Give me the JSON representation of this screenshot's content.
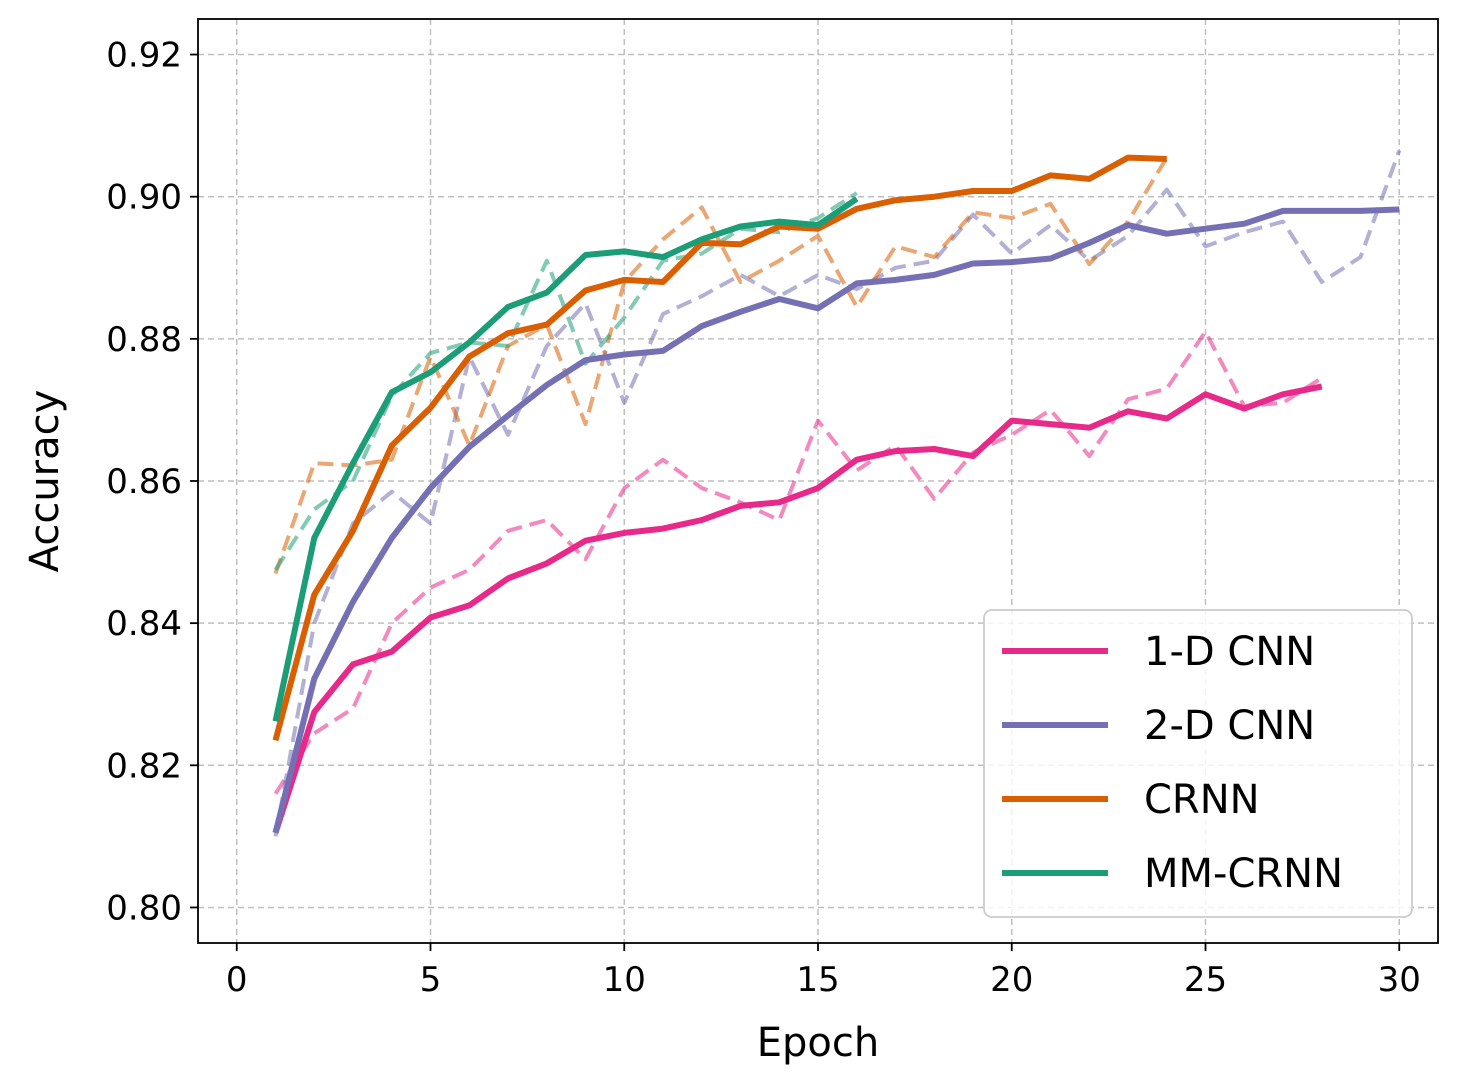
{
  "chart_data": {
    "type": "line",
    "xlabel": "Epoch",
    "ylabel": "Accuracy",
    "xlim": [
      -1,
      31
    ],
    "ylim": [
      0.795,
      0.925
    ],
    "xticks": [
      0,
      5,
      10,
      15,
      20,
      25,
      30
    ],
    "yticks": [
      0.8,
      0.82,
      0.84,
      0.86,
      0.88,
      0.9,
      0.92
    ],
    "xtick_labels": [
      "0",
      "5",
      "10",
      "15",
      "20",
      "25",
      "30"
    ],
    "ytick_labels": [
      "0.80",
      "0.82",
      "0.84",
      "0.86",
      "0.88",
      "0.90",
      "0.92"
    ],
    "grid": true,
    "legend_position": "bottom-right",
    "series": [
      {
        "name": "1-D CNN",
        "color": "#e7298a",
        "style": "solid",
        "x": [
          1,
          2,
          3,
          4,
          5,
          6,
          7,
          8,
          9,
          10,
          11,
          12,
          13,
          14,
          15,
          16,
          17,
          18,
          19,
          20,
          21,
          22,
          23,
          24,
          25,
          26,
          27,
          28
        ],
        "values": [
          0.8105,
          0.8275,
          0.8342,
          0.836,
          0.8408,
          0.8425,
          0.8463,
          0.8484,
          0.8516,
          0.8527,
          0.8533,
          0.8545,
          0.8565,
          0.857,
          0.859,
          0.863,
          0.8642,
          0.8645,
          0.8635,
          0.8685,
          0.868,
          0.8675,
          0.8698,
          0.8688,
          0.8722,
          0.8702,
          0.8722,
          0.8733
        ]
      },
      {
        "name": "",
        "color": "#e7298a",
        "style": "dashed",
        "x": [
          1,
          2,
          3,
          4,
          5,
          6,
          7,
          8,
          9,
          10,
          11,
          12,
          13,
          14,
          15,
          16,
          17,
          18,
          19,
          20,
          21,
          22,
          23,
          24,
          25,
          26,
          27,
          28
        ],
        "values": [
          0.816,
          0.8245,
          0.828,
          0.84,
          0.845,
          0.8475,
          0.853,
          0.8545,
          0.849,
          0.859,
          0.863,
          0.859,
          0.857,
          0.8545,
          0.8685,
          0.8615,
          0.865,
          0.8575,
          0.864,
          0.8665,
          0.87,
          0.8635,
          0.8715,
          0.873,
          0.881,
          0.8705,
          0.871,
          0.8745
        ]
      },
      {
        "name": "2-D CNN",
        "color": "#7570b3",
        "style": "solid",
        "x": [
          1,
          2,
          3,
          4,
          5,
          6,
          7,
          8,
          9,
          10,
          11,
          12,
          13,
          14,
          15,
          16,
          17,
          18,
          19,
          20,
          21,
          22,
          23,
          24,
          25,
          26,
          27,
          28,
          29,
          30
        ],
        "values": [
          0.8105,
          0.8322,
          0.843,
          0.852,
          0.859,
          0.8648,
          0.8692,
          0.8735,
          0.877,
          0.8778,
          0.8783,
          0.8818,
          0.8838,
          0.8856,
          0.8843,
          0.8878,
          0.8883,
          0.889,
          0.8906,
          0.8908,
          0.8913,
          0.8935,
          0.896,
          0.8948,
          0.8955,
          0.8962,
          0.898,
          0.898,
          0.898,
          0.8982
        ]
      },
      {
        "name": "",
        "color": "#7570b3",
        "style": "dashed",
        "x": [
          1,
          2,
          3,
          4,
          5,
          6,
          7,
          8,
          9,
          10,
          11,
          12,
          13,
          14,
          15,
          16,
          17,
          18,
          19,
          20,
          21,
          22,
          23,
          24,
          25,
          26,
          27,
          28,
          29,
          30
        ],
        "values": [
          0.81,
          0.84,
          0.854,
          0.8585,
          0.854,
          0.8775,
          0.8665,
          0.879,
          0.885,
          0.871,
          0.8835,
          0.886,
          0.889,
          0.886,
          0.889,
          0.887,
          0.89,
          0.891,
          0.8975,
          0.892,
          0.896,
          0.891,
          0.8945,
          0.901,
          0.893,
          0.895,
          0.8965,
          0.888,
          0.8915,
          0.9065
        ]
      },
      {
        "name": "CRNN",
        "color": "#d95f02",
        "style": "solid",
        "x": [
          1,
          2,
          3,
          4,
          5,
          6,
          7,
          8,
          9,
          10,
          11,
          12,
          13,
          14,
          15,
          16,
          17,
          18,
          19,
          20,
          21,
          22,
          23,
          24
        ],
        "values": [
          0.8235,
          0.844,
          0.853,
          0.865,
          0.8703,
          0.8775,
          0.8808,
          0.882,
          0.8868,
          0.8883,
          0.888,
          0.8935,
          0.8933,
          0.8958,
          0.8955,
          0.8983,
          0.8995,
          0.9,
          0.9008,
          0.9008,
          0.903,
          0.9025,
          0.9055,
          0.9053
        ]
      },
      {
        "name": "",
        "color": "#d95f02",
        "style": "dashed",
        "x": [
          1,
          2,
          3,
          4,
          5,
          6,
          7,
          8,
          9,
          10,
          11,
          12,
          13,
          14,
          15,
          16,
          17,
          18,
          19,
          20,
          21,
          22,
          23,
          24
        ],
        "values": [
          0.847,
          0.8625,
          0.8622,
          0.863,
          0.8775,
          0.865,
          0.879,
          0.882,
          0.868,
          0.888,
          0.894,
          0.8985,
          0.888,
          0.891,
          0.8945,
          0.8845,
          0.893,
          0.8915,
          0.8978,
          0.897,
          0.899,
          0.8905,
          0.8965,
          0.9055
        ]
      },
      {
        "name": "MM-CRNN",
        "color": "#1b9e77",
        "style": "solid",
        "x": [
          1,
          2,
          3,
          4,
          5,
          6,
          7,
          8,
          9,
          10,
          11,
          12,
          13,
          14,
          15,
          16
        ],
        "values": [
          0.8262,
          0.852,
          0.8625,
          0.8725,
          0.8753,
          0.8795,
          0.8845,
          0.8865,
          0.8918,
          0.8923,
          0.8915,
          0.894,
          0.8958,
          0.8965,
          0.896,
          0.8997
        ]
      },
      {
        "name": "",
        "color": "#1b9e77",
        "style": "dashed",
        "x": [
          1,
          2,
          3,
          4,
          5,
          6,
          7,
          8,
          9,
          10,
          11,
          12,
          13,
          14,
          15,
          16
        ],
        "values": [
          0.8475,
          0.856,
          0.86,
          0.872,
          0.878,
          0.8795,
          0.879,
          0.891,
          0.8765,
          0.883,
          0.891,
          0.892,
          0.8955,
          0.895,
          0.897,
          0.9005
        ]
      }
    ]
  }
}
